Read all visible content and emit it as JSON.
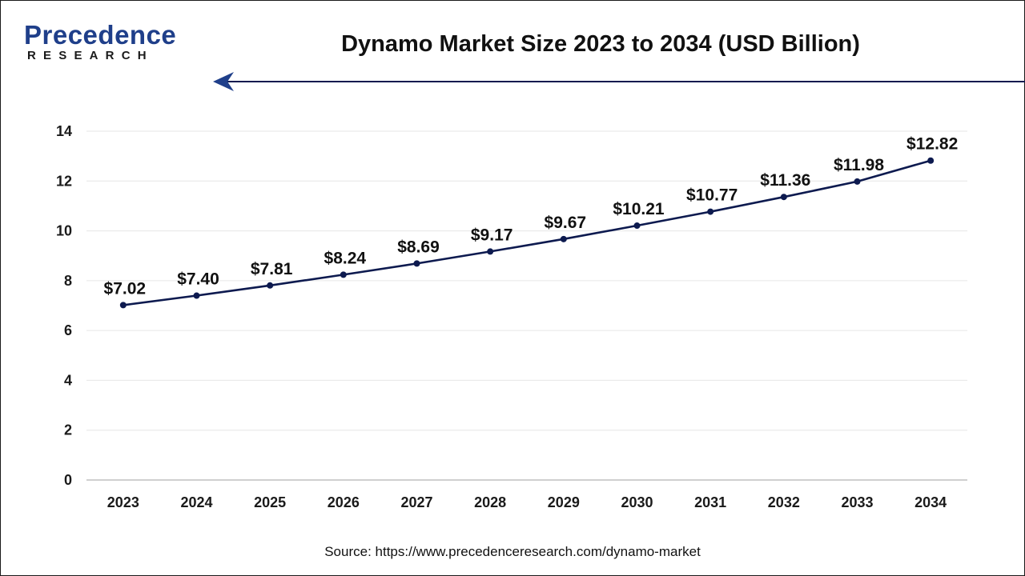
{
  "brand": {
    "name_main": "Precedence",
    "name_sub": "RESEARCH",
    "color": "#1f3f8a"
  },
  "title": "Dynamo Market Size 2023 to 2034 (USD Billion)",
  "source": "Source: https://www.precedenceresearch.com/dynamo-market",
  "colors": {
    "line": "#0d1a4f",
    "grid": "#e6e6e6",
    "axis": "#bfbfbf"
  },
  "chart_data": {
    "type": "line",
    "categories": [
      "2023",
      "2024",
      "2025",
      "2026",
      "2027",
      "2028",
      "2029",
      "2030",
      "2031",
      "2032",
      "2033",
      "2034"
    ],
    "values": [
      7.02,
      7.4,
      7.81,
      8.24,
      8.69,
      9.17,
      9.67,
      10.21,
      10.77,
      11.36,
      11.98,
      12.82
    ],
    "data_labels": [
      "$7.02",
      "$7.40",
      "$7.81",
      "$8.24",
      "$8.69",
      "$9.17",
      "$9.67",
      "$10.21",
      "$10.77",
      "$11.36",
      "$11.98",
      "$12.82"
    ],
    "title": "Dynamo Market Size 2023 to 2034 (USD Billion)",
    "xlabel": "",
    "ylabel": "",
    "ylim": [
      0,
      14
    ],
    "yticks": [
      "0",
      "2",
      "4",
      "6",
      "8",
      "10",
      "12",
      "14"
    ],
    "grid": true,
    "legend": "none"
  }
}
